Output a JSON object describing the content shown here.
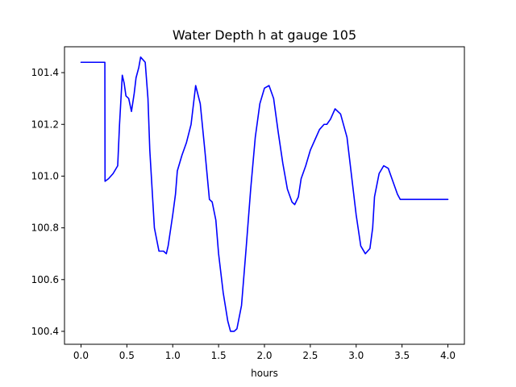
{
  "chart_data": {
    "type": "line",
    "title": "Water Depth h at gauge 105",
    "xlabel": "hours",
    "ylabel": "",
    "xlim": [
      -0.18,
      4.18
    ],
    "ylim": [
      100.35,
      101.5
    ],
    "x_ticks": [
      0.0,
      0.5,
      1.0,
      1.5,
      2.0,
      2.5,
      3.0,
      3.5,
      4.0
    ],
    "x_tick_labels": [
      "0.0",
      "0.5",
      "1.0",
      "1.5",
      "2.0",
      "2.5",
      "3.0",
      "3.5",
      "4.0"
    ],
    "y_ticks": [
      100.4,
      100.6,
      100.8,
      101.0,
      101.2,
      101.4
    ],
    "y_tick_labels": [
      "100.4",
      "100.6",
      "100.8",
      "101.0",
      "101.2",
      "101.4"
    ],
    "grid": false,
    "legend": "none",
    "series": [
      {
        "color": "#0000ff",
        "x": [
          0.0,
          0.26,
          0.262,
          0.3,
          0.35,
          0.4,
          0.42,
          0.45,
          0.47,
          0.49,
          0.52,
          0.55,
          0.58,
          0.6,
          0.63,
          0.65,
          0.7,
          0.73,
          0.75,
          0.8,
          0.85,
          0.9,
          0.93,
          0.95,
          1.0,
          1.03,
          1.05,
          1.1,
          1.15,
          1.2,
          1.25,
          1.3,
          1.35,
          1.4,
          1.43,
          1.47,
          1.5,
          1.55,
          1.6,
          1.63,
          1.67,
          1.7,
          1.75,
          1.8,
          1.85,
          1.9,
          1.95,
          2.0,
          2.05,
          2.1,
          2.15,
          2.2,
          2.25,
          2.3,
          2.33,
          2.37,
          2.4,
          2.45,
          2.5,
          2.55,
          2.6,
          2.65,
          2.68,
          2.72,
          2.77,
          2.83,
          2.9,
          2.95,
          3.0,
          3.05,
          3.1,
          3.15,
          3.18,
          3.2,
          3.25,
          3.3,
          3.35,
          3.4,
          3.45,
          3.48,
          3.5,
          3.55,
          3.6,
          3.65,
          3.7,
          3.75,
          3.8,
          3.85,
          3.9,
          3.95,
          4.0
        ],
        "y": [
          101.44,
          101.44,
          100.98,
          100.99,
          101.01,
          101.04,
          101.2,
          101.39,
          101.36,
          101.31,
          101.3,
          101.25,
          101.32,
          101.38,
          101.42,
          101.46,
          101.44,
          101.3,
          101.1,
          100.8,
          100.71,
          100.71,
          100.7,
          100.73,
          100.85,
          100.93,
          101.02,
          101.08,
          101.13,
          101.2,
          101.35,
          101.28,
          101.1,
          100.91,
          100.9,
          100.83,
          100.7,
          100.55,
          100.44,
          100.4,
          100.4,
          100.41,
          100.5,
          100.72,
          100.95,
          101.15,
          101.28,
          101.34,
          101.35,
          101.3,
          101.17,
          101.05,
          100.95,
          100.9,
          100.89,
          100.92,
          100.99,
          101.04,
          101.1,
          101.14,
          101.18,
          101.2,
          101.2,
          101.22,
          101.26,
          101.24,
          101.15,
          101.0,
          100.85,
          100.73,
          100.7,
          100.72,
          100.8,
          100.92,
          101.01,
          101.04,
          101.03,
          100.98,
          100.93,
          100.91,
          100.91,
          100.91,
          100.91,
          100.91,
          100.91,
          100.91,
          100.91,
          100.91,
          100.91,
          100.91,
          100.91
        ]
      }
    ]
  }
}
